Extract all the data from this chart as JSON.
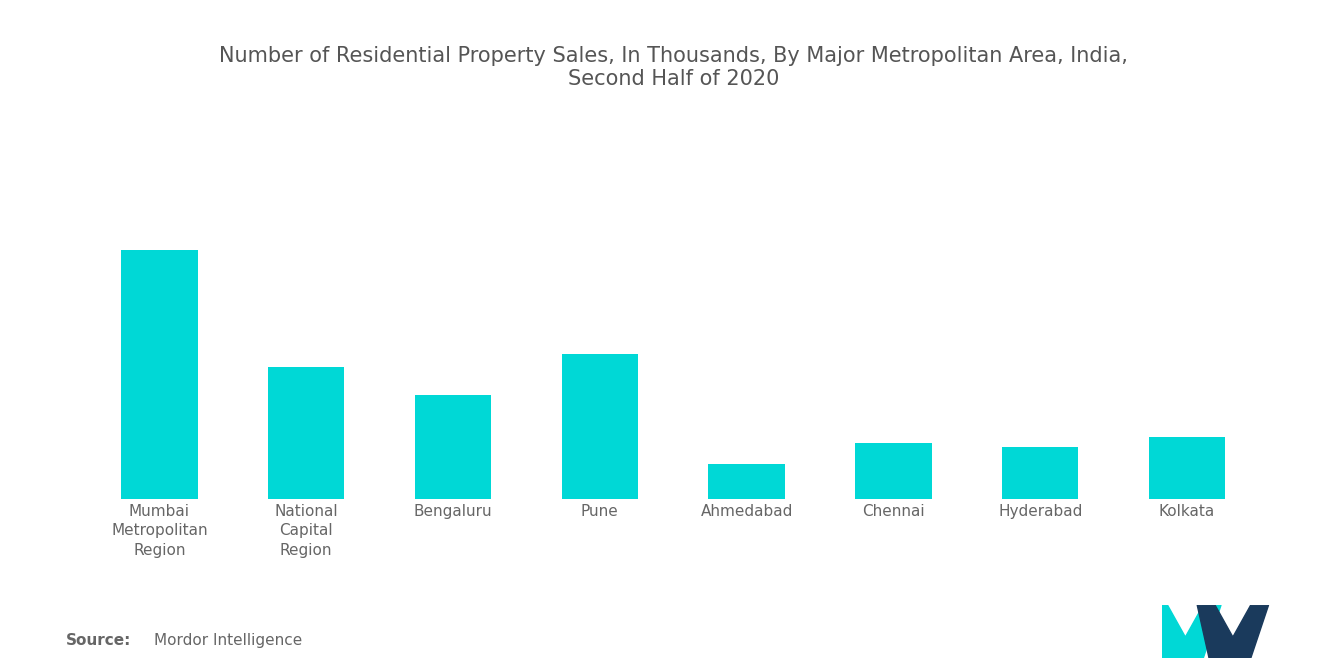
{
  "title": "Number of Residential Property Sales, In Thousands, By Major Metropolitan Area, India,\nSecond Half of 2020",
  "categories": [
    "Mumbai\nMetropolitan\nRegion",
    "National\nCapital\nRegion",
    "Bengaluru",
    "Pune",
    "Ahmedabad",
    "Chennai",
    "Hyderabad",
    "Kolkata"
  ],
  "values": [
    36,
    19,
    15,
    21,
    5,
    8,
    7.5,
    9
  ],
  "bar_color": "#00D8D6",
  "background_color": "#ffffff",
  "title_color": "#555555",
  "label_color": "#666666",
  "title_fontsize": 15,
  "label_fontsize": 11,
  "source_fontsize": 11,
  "bar_width": 0.52
}
